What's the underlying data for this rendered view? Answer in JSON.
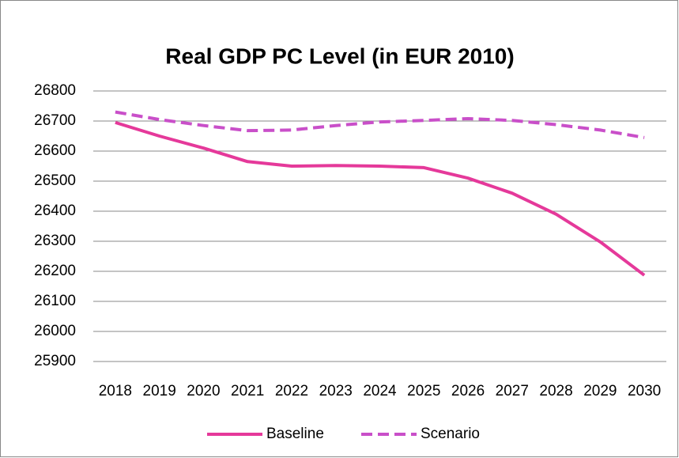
{
  "chart_data": {
    "type": "line",
    "title": "Real GDP PC Level (in EUR 2010)",
    "categories": [
      "2018",
      "2019",
      "2020",
      "2021",
      "2022",
      "2023",
      "2024",
      "2025",
      "2026",
      "2027",
      "2028",
      "2029",
      "2030"
    ],
    "series": [
      {
        "name": "Baseline",
        "color": "#e5399a",
        "dash": false,
        "values": [
          26695,
          26650,
          26610,
          26565,
          26550,
          26552,
          26550,
          26545,
          26510,
          26460,
          26390,
          26298,
          26187
        ]
      },
      {
        "name": "Scenario",
        "color": "#c94fc9",
        "dash": true,
        "values": [
          26730,
          26705,
          26685,
          26668,
          26670,
          26685,
          26697,
          26702,
          26708,
          26702,
          26688,
          26670,
          26645
        ]
      }
    ],
    "ylim": [
      25900,
      26800
    ],
    "yticks": [
      25900,
      26000,
      26100,
      26200,
      26300,
      26400,
      26500,
      26600,
      26700,
      26800
    ],
    "grid": true,
    "legend": "bottom"
  }
}
